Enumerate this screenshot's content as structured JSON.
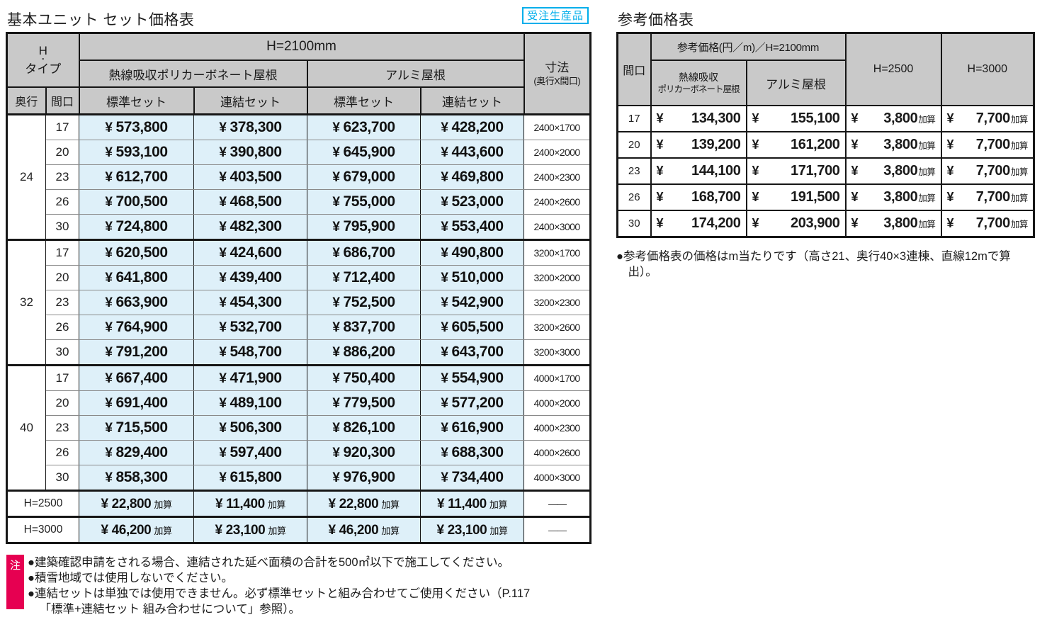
{
  "page": {
    "left_table_title": "基本ユニット セット価格表",
    "badge": "受注生産品",
    "right_table_title": "参考価格表"
  },
  "colors": {
    "accent_cyan": "#00aeeb",
    "note_red": "#e60051",
    "header_gray": "#c9c9c9",
    "price_cell_blue": "#def0f9"
  },
  "left_table": {
    "yen": "¥",
    "kasan": "加算",
    "header": {
      "h_type_lines": [
        "H",
        "・",
        "タイプ"
      ],
      "h2100": "H=2100mm",
      "roof_poly": "熱線吸収ポリカーボネート屋根",
      "roof_alumi": "アルミ屋根",
      "set_standard": "標準セット",
      "set_renketsu": "連結セット",
      "depth": "奥行",
      "width": "間口",
      "dim_line1": "寸法",
      "dim_line2": "(奥行X間口)"
    },
    "sections": [
      {
        "depth": "24",
        "rows": [
          {
            "width": "17",
            "poly_std": "573,800",
            "poly_ren": "378,300",
            "alu_std": "623,700",
            "alu_ren": "428,200",
            "dim": "2400×1700"
          },
          {
            "width": "20",
            "poly_std": "593,100",
            "poly_ren": "390,800",
            "alu_std": "645,900",
            "alu_ren": "443,600",
            "dim": "2400×2000"
          },
          {
            "width": "23",
            "poly_std": "612,700",
            "poly_ren": "403,500",
            "alu_std": "679,000",
            "alu_ren": "469,800",
            "dim": "2400×2300"
          },
          {
            "width": "26",
            "poly_std": "700,500",
            "poly_ren": "468,500",
            "alu_std": "755,000",
            "alu_ren": "523,000",
            "dim": "2400×2600"
          },
          {
            "width": "30",
            "poly_std": "724,800",
            "poly_ren": "482,300",
            "alu_std": "795,900",
            "alu_ren": "553,400",
            "dim": "2400×3000"
          }
        ]
      },
      {
        "depth": "32",
        "rows": [
          {
            "width": "17",
            "poly_std": "620,500",
            "poly_ren": "424,600",
            "alu_std": "686,700",
            "alu_ren": "490,800",
            "dim": "3200×1700"
          },
          {
            "width": "20",
            "poly_std": "641,800",
            "poly_ren": "439,400",
            "alu_std": "712,400",
            "alu_ren": "510,000",
            "dim": "3200×2000"
          },
          {
            "width": "23",
            "poly_std": "663,900",
            "poly_ren": "454,300",
            "alu_std": "752,500",
            "alu_ren": "542,900",
            "dim": "3200×2300"
          },
          {
            "width": "26",
            "poly_std": "764,900",
            "poly_ren": "532,700",
            "alu_std": "837,700",
            "alu_ren": "605,500",
            "dim": "3200×2600"
          },
          {
            "width": "30",
            "poly_std": "791,200",
            "poly_ren": "548,700",
            "alu_std": "886,200",
            "alu_ren": "643,700",
            "dim": "3200×3000"
          }
        ]
      },
      {
        "depth": "40",
        "rows": [
          {
            "width": "17",
            "poly_std": "667,400",
            "poly_ren": "471,900",
            "alu_std": "750,400",
            "alu_ren": "554,900",
            "dim": "4000×1700"
          },
          {
            "width": "20",
            "poly_std": "691,400",
            "poly_ren": "489,100",
            "alu_std": "779,500",
            "alu_ren": "577,200",
            "dim": "4000×2000"
          },
          {
            "width": "23",
            "poly_std": "715,500",
            "poly_ren": "506,300",
            "alu_std": "826,100",
            "alu_ren": "616,900",
            "dim": "4000×2300"
          },
          {
            "width": "26",
            "poly_std": "829,400",
            "poly_ren": "597,400",
            "alu_std": "920,300",
            "alu_ren": "688,300",
            "dim": "4000×2600"
          },
          {
            "width": "30",
            "poly_std": "858,300",
            "poly_ren": "615,800",
            "alu_std": "976,900",
            "alu_ren": "734,400",
            "dim": "4000×3000"
          }
        ]
      }
    ],
    "extra_rows": [
      {
        "label": "H=2500",
        "poly_std": "22,800",
        "poly_ren": "11,400",
        "alu_std": "22,800",
        "alu_ren": "11,400",
        "dim": "——"
      },
      {
        "label": "H=3000",
        "poly_std": "46,200",
        "poly_ren": "23,100",
        "alu_std": "46,200",
        "alu_ren": "23,100",
        "dim": "——"
      }
    ]
  },
  "notes": {
    "marker": "注",
    "items": [
      "●建築確認申請をされる場合、連結された延べ面積の合計を500㎡以下で施工してください。",
      "●積雪地域では使用しないでください。",
      "●連結セットは単独では使用できません。必ず標準セットと組み合わせてご使用ください（P.117「標準+連結セット 組み合わせについて」参照）。"
    ]
  },
  "right_table": {
    "yen": "¥",
    "kasan": "加算",
    "header": {
      "width": "間口",
      "ref_price": "参考価格(円／m)／H=2100mm",
      "roof_poly_line1": "熱線吸収",
      "roof_poly_line2": "ポリカーボネート屋根",
      "roof_alumi": "アルミ屋根",
      "h2500": "H=2500",
      "h3000": "H=3000"
    },
    "rows": [
      {
        "width": "17",
        "poly": "134,300",
        "alu": "155,100",
        "h2500": "3,800",
        "h3000": "7,700"
      },
      {
        "width": "20",
        "poly": "139,200",
        "alu": "161,200",
        "h2500": "3,800",
        "h3000": "7,700"
      },
      {
        "width": "23",
        "poly": "144,100",
        "alu": "171,700",
        "h2500": "3,800",
        "h3000": "7,700"
      },
      {
        "width": "26",
        "poly": "168,700",
        "alu": "191,500",
        "h2500": "3,800",
        "h3000": "7,700"
      },
      {
        "width": "30",
        "poly": "174,200",
        "alu": "203,900",
        "h2500": "3,800",
        "h3000": "7,700"
      }
    ],
    "note": "●参考価格表の価格はm当たりです（高さ21、奥行40×3連棟、直線12mで算出）。"
  }
}
